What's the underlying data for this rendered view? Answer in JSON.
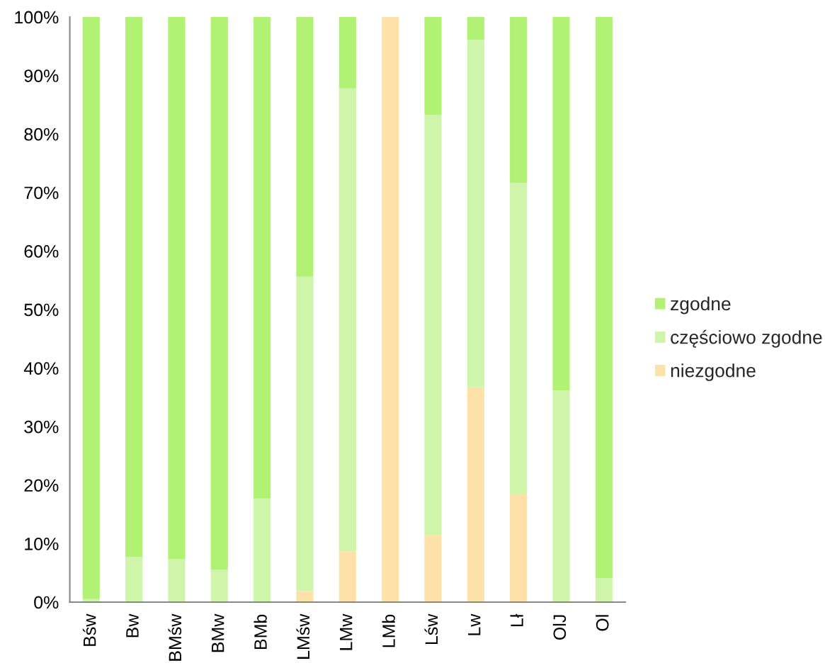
{
  "chart_data": {
    "type": "bar",
    "stacked": true,
    "categories": [
      "Bśw",
      "Bw",
      "BMśw",
      "BMw",
      "BMb",
      "LMśw",
      "LMw",
      "LMb",
      "Lśw",
      "Lw",
      "Lł",
      "OlJ",
      "Ol"
    ],
    "series": [
      {
        "name": "niezgodne",
        "color": "#fee1a8",
        "values": [
          0,
          0,
          0,
          0,
          0,
          1.9,
          8.7,
          100,
          11.4,
          36.7,
          18.5,
          0,
          0
        ]
      },
      {
        "name": "częściowo zgodne",
        "color": "#cff5aa",
        "values": [
          0.5,
          7.7,
          7.4,
          5.5,
          17.7,
          53.7,
          79.1,
          0,
          71.9,
          59.4,
          53.1,
          36.2,
          4.1
        ]
      },
      {
        "name": "zgodne",
        "color": "#b1f174",
        "values": [
          99.5,
          92.3,
          92.6,
          94.5,
          82.3,
          44.4,
          12.2,
          0,
          16.7,
          3.9,
          28.4,
          63.8,
          95.9
        ]
      }
    ],
    "ylim": [
      0,
      100
    ],
    "yticks": [
      {
        "value": 0,
        "label": "0%"
      },
      {
        "value": 10,
        "label": "10%"
      },
      {
        "value": 20,
        "label": "20%"
      },
      {
        "value": 30,
        "label": "30%"
      },
      {
        "value": 40,
        "label": "40%"
      },
      {
        "value": 50,
        "label": "50%"
      },
      {
        "value": 60,
        "label": "60%"
      },
      {
        "value": 70,
        "label": "70%"
      },
      {
        "value": 80,
        "label": "80%"
      },
      {
        "value": 90,
        "label": "90%"
      },
      {
        "value": 100,
        "label": "100%"
      }
    ],
    "legend": "right"
  }
}
